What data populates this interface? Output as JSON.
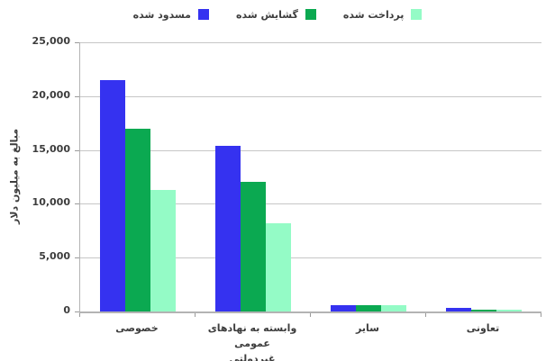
{
  "chart_data": {
    "type": "bar",
    "title": "",
    "ylabel": "مبالغ به میلیون دلار",
    "xlabel": "",
    "categories": [
      "خصوصی",
      "وابسته به نهادهای عمومی\nغیردولتی",
      "سایر",
      "تعاونی"
    ],
    "series": [
      {
        "name": "مسدود شده",
        "color": "#3532f0",
        "values": [
          21500,
          15400,
          600,
          300
        ]
      },
      {
        "name": "گشایش شده",
        "color": "#0ba951",
        "values": [
          17000,
          12000,
          550,
          150
        ]
      },
      {
        "name": "پرداخت شده",
        "color": "#94fbc6",
        "values": [
          11300,
          8200,
          600,
          200
        ]
      }
    ],
    "ylim": [
      0,
      25000
    ],
    "yticks": [
      0,
      5000,
      10000,
      15000,
      20000,
      25000
    ],
    "ytick_labels": [
      "0",
      "5,000",
      "10,000",
      "15,000",
      "20,000",
      "25,000"
    ],
    "grid": true,
    "legend_position": "top"
  },
  "colors": {
    "gridline": "#c6c6c6",
    "axis": "#b3b3b3",
    "tick": "#9a9a9a",
    "text": "#3d3d3d",
    "background": "#ffffff"
  }
}
